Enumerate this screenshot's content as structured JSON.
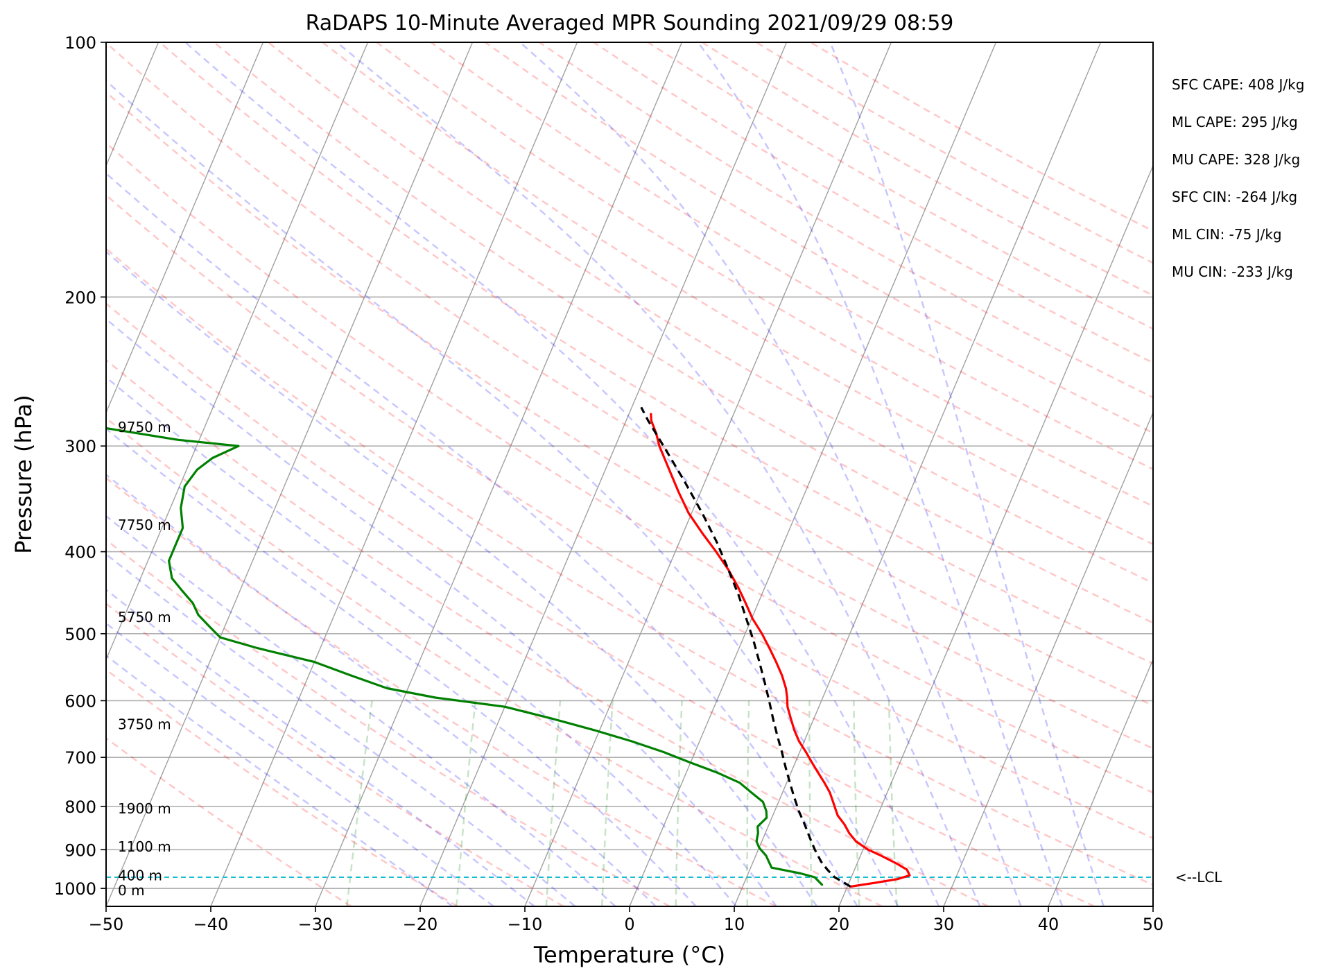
{
  "chart_data": {
    "type": "line",
    "title": "RaDAPS 10-Minute Averaged MPR Sounding 2021/09/29 08:59",
    "xlabel": "Temperature (°C)",
    "ylabel": "Pressure (hPa)",
    "xlim": [
      -50,
      50
    ],
    "ylim": [
      1050,
      100
    ],
    "y_scale": "log",
    "skew": "temperature isotherms skewed to the right",
    "x_ticks": [
      "−50",
      "−40",
      "−30",
      "−20",
      "−10",
      "0",
      "10",
      "20",
      "30",
      "40",
      "50"
    ],
    "y_ticks": [
      "100",
      "200",
      "300",
      "400",
      "500",
      "600",
      "700",
      "800",
      "900",
      "1000"
    ],
    "grid": true,
    "height_labels": [
      {
        "text": "9750 m",
        "p": 285
      },
      {
        "text": "7750 m",
        "p": 372
      },
      {
        "text": "5750 m",
        "p": 478
      },
      {
        "text": "3750 m",
        "p": 640
      },
      {
        "text": "1900 m",
        "p": 805
      },
      {
        "text": "1100 m",
        "p": 893
      },
      {
        "text": "400 m",
        "p": 965
      },
      {
        "text": "0 m",
        "p": 1005
      }
    ],
    "indices": [
      "SFC CAPE: 408 J/kg",
      "ML CAPE: 295 J/kg",
      "MU CAPE: 328 J/kg",
      "SFC CIN: -264 J/kg",
      "ML CIN: -75 J/kg",
      "MU CIN: -233 J/kg"
    ],
    "lcl": {
      "label": "<--LCL",
      "p": 970,
      "color": "#17becf"
    },
    "series": [
      {
        "role": "temperature",
        "color": "#ff0000",
        "p": [
          995,
          985,
          975,
          965,
          950,
          935,
          915,
          900,
          880,
          860,
          840,
          820,
          805,
          790,
          770,
          750,
          730,
          710,
          690,
          670,
          650,
          630,
          610,
          595,
          580,
          560,
          540,
          520,
          500,
          480,
          460,
          440,
          420,
          400,
          380,
          360,
          340,
          320,
          300,
          290,
          280,
          275
        ],
        "t": [
          20.3,
          22.5,
          24.5,
          25.5,
          25.0,
          23.8,
          22.0,
          20.5,
          19.0,
          18.0,
          17.2,
          16.2,
          15.7,
          15.2,
          14.5,
          13.6,
          12.6,
          11.6,
          10.6,
          9.5,
          8.6,
          7.8,
          7.0,
          6.6,
          6.1,
          5.2,
          4.1,
          2.9,
          1.6,
          0.1,
          -1.2,
          -2.6,
          -4.2,
          -6.1,
          -8.2,
          -10.3,
          -12.1,
          -13.9,
          -15.8,
          -16.6,
          -17.6,
          -17.9
        ]
      },
      {
        "role": "dewpoint",
        "color": "#008000",
        "p": [
          990,
          980,
          970,
          960,
          945,
          930,
          915,
          895,
          880,
          860,
          845,
          825,
          810,
          790,
          770,
          750,
          730,
          710,
          690,
          670,
          650,
          630,
          610,
          595,
          580,
          560,
          540,
          520,
          505,
          490,
          475,
          460,
          445,
          430,
          410,
          395,
          375,
          355,
          335,
          320,
          310,
          300,
          295,
          290,
          285,
          282
        ],
        "t": [
          17.5,
          17.0,
          16.5,
          15.0,
          12.0,
          11.5,
          11.0,
          10.0,
          9.5,
          9.3,
          9.0,
          9.5,
          9.2,
          8.5,
          7.0,
          5.5,
          3.0,
          0.0,
          -3.0,
          -6.5,
          -10.5,
          -15.0,
          -20.0,
          -27.0,
          -32.0,
          -36.0,
          -40.0,
          -46.0,
          -50.0,
          -51.5,
          -53.0,
          -54.0,
          -55.5,
          -57.0,
          -58.0,
          -58.0,
          -58.0,
          -59.0,
          -59.5,
          -59.0,
          -58.0,
          -56.0,
          -62.0,
          -66.0,
          -70.0,
          -73.0
        ]
      },
      {
        "role": "parcel profile",
        "color": "#000000",
        "dashed": true,
        "p": [
          995,
          980,
          970,
          950,
          930,
          900,
          870,
          840,
          810,
          780,
          750,
          720,
          690,
          660,
          630,
          600,
          570,
          540,
          510,
          480,
          450,
          420,
          390,
          360,
          330,
          300,
          280,
          270
        ],
        "t": [
          20.3,
          19.2,
          18.4,
          17.4,
          16.5,
          15.4,
          14.4,
          13.4,
          12.3,
          11.3,
          10.3,
          9.3,
          8.3,
          7.2,
          6.1,
          5.0,
          3.8,
          2.5,
          1.1,
          -0.5,
          -2.2,
          -4.2,
          -6.4,
          -9.0,
          -12.0,
          -15.4,
          -17.9,
          -19.1
        ]
      }
    ]
  }
}
